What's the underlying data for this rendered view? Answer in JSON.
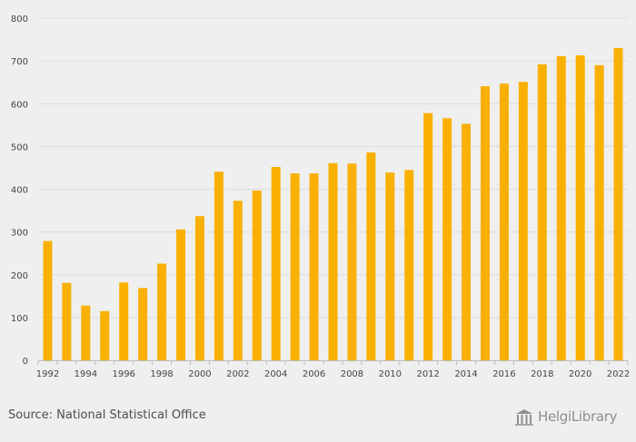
{
  "chart_data": {
    "type": "bar",
    "title": "",
    "xlabel": "",
    "ylabel": "",
    "categories": [
      "1992",
      "1993",
      "1994",
      "1995",
      "1996",
      "1997",
      "1998",
      "1999",
      "2000",
      "2001",
      "2002",
      "2003",
      "2004",
      "2005",
      "2006",
      "2007",
      "2008",
      "2009",
      "2010",
      "2011",
      "2012",
      "2013",
      "2014",
      "2015",
      "2016",
      "2017",
      "2018",
      "2019",
      "2020",
      "2021",
      "2022"
    ],
    "x_tick_labels": [
      "1992",
      "1994",
      "1996",
      "1998",
      "2000",
      "2002",
      "2004",
      "2006",
      "2008",
      "2010",
      "2012",
      "2014",
      "2016",
      "2018",
      "2020",
      "2022"
    ],
    "values": [
      279,
      181,
      128,
      115,
      182,
      169,
      226,
      306,
      337,
      441,
      373,
      397,
      452,
      437,
      437,
      461,
      460,
      486,
      439,
      445,
      578,
      566,
      553,
      641,
      647,
      651,
      692,
      711,
      713,
      690,
      730
    ],
    "ylim": [
      0,
      800
    ],
    "y_ticks": [
      0,
      100,
      200,
      300,
      400,
      500,
      600,
      700,
      800
    ],
    "grid": true,
    "legend": "none",
    "colors": {
      "bar": "#f9b000",
      "grid": "#dcdcdc",
      "background": "#efefef",
      "tick_text": "#444444"
    }
  },
  "footer": {
    "source": "Source: National Statistical Office",
    "logo_text": "HelgiLibrary"
  }
}
